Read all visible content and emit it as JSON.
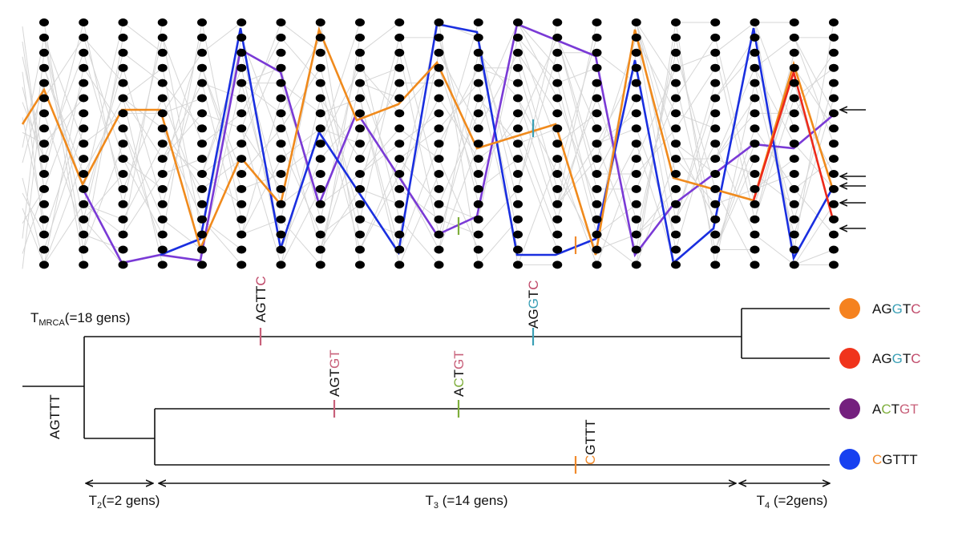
{
  "tree": {
    "tmrca": {
      "main": "T",
      "sub": "MRCA",
      "rest": "(=18 gens)"
    },
    "root_sequence": {
      "text": "AGTTT",
      "colors": [
        "#111",
        "#111",
        "#111",
        "#111",
        "#111"
      ]
    },
    "mutations": [
      {
        "text": "AGTTC",
        "colors": [
          "#111",
          "#111",
          "#111",
          "#111",
          "#c04a6a"
        ],
        "tick_color": "#c8607a"
      },
      {
        "text": "AGGTC",
        "colors": [
          "#111",
          "#111",
          "#3a9fb5",
          "#111",
          "#c04a6a"
        ],
        "tick_color": "#3a9fb5"
      },
      {
        "text": "AGTGT",
        "colors": [
          "#111",
          "#111",
          "#111",
          "#c8607a",
          "#c8607a"
        ],
        "tick_color": "#c8607a"
      },
      {
        "text": "ACTGT",
        "colors": [
          "#111",
          "#7fae3c",
          "#111",
          "#c8607a",
          "#c8607a"
        ],
        "tick_color": "#7fae3c"
      },
      {
        "text": "CGTTT",
        "colors": [
          "#f08a2c",
          "#111",
          "#111",
          "#111",
          "#111"
        ],
        "tick_color": "#f08a2c"
      }
    ],
    "leaves": [
      {
        "text": "AGGTC",
        "colors": [
          "#111",
          "#111",
          "#3a9fb5",
          "#111",
          "#c04a6a"
        ],
        "dot_color": "#f5821f"
      },
      {
        "text": "AGGTC",
        "colors": [
          "#111",
          "#111",
          "#3a9fb5",
          "#111",
          "#c04a6a"
        ],
        "dot_color": "#f0341c"
      },
      {
        "text": "ACTGT",
        "colors": [
          "#111",
          "#7fae3c",
          "#111",
          "#c8607a",
          "#c8607a"
        ],
        "dot_color": "#74207e"
      },
      {
        "text": "CGTTT",
        "colors": [
          "#f08a2c",
          "#111",
          "#111",
          "#111",
          "#111"
        ],
        "dot_color": "#1740f0"
      }
    ],
    "intervals": [
      {
        "main": "T",
        "sub": "2",
        "rest": "(=2 gens)"
      },
      {
        "main": "T",
        "sub": "3",
        "rest": " (=14 gens)"
      },
      {
        "main": "T",
        "sub": "4",
        "rest": " (=2gens)"
      }
    ]
  }
}
